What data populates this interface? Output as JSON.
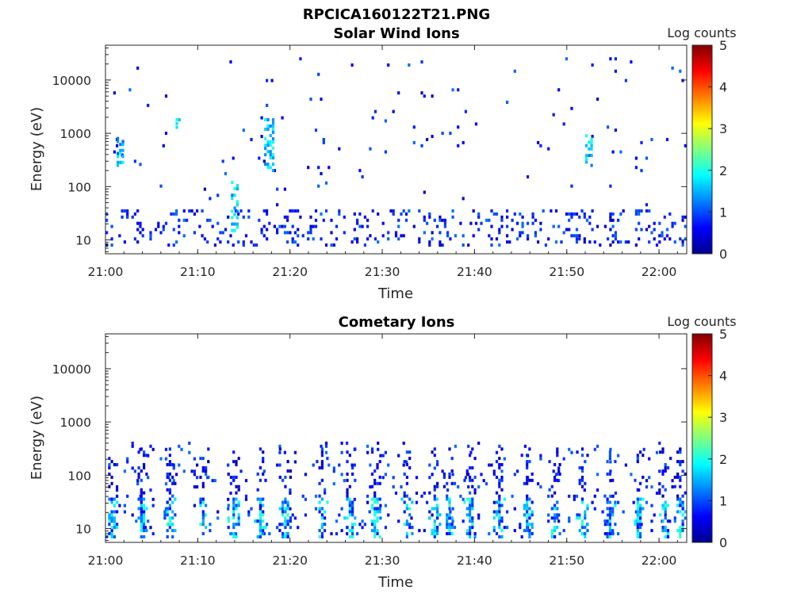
{
  "figure_title": "RPCICA160122T21.PNG",
  "chart_data": [
    {
      "type": "heatmap",
      "title": "Solar Wind Ions",
      "xlabel": "Time",
      "ylabel": "Energy (eV)",
      "y_scale": "log",
      "ylim": [
        5.5,
        45000
      ],
      "xlim": [
        "21:00",
        "22:03"
      ],
      "x_ticks": [
        "21:00",
        "21:10",
        "21:20",
        "21:30",
        "21:40",
        "21:50",
        "22:00"
      ],
      "y_ticks": [
        "10",
        "100",
        "1000",
        "10000"
      ],
      "colorbar": {
        "label": "Log counts",
        "range": [
          0,
          5
        ],
        "ticks": [
          "0",
          "1",
          "2",
          "3",
          "4",
          "5"
        ]
      },
      "bands": [
        {
          "t_start": 0,
          "t_end": 63,
          "e_min": 8,
          "e_max": 35,
          "level": 0.3,
          "density": 0.14
        },
        {
          "t_start": 0,
          "t_end": 63,
          "e_min": 40,
          "e_max": 25000,
          "level": 0.3,
          "density": 0.012
        },
        {
          "t_start": 1.2,
          "t_end": 2.0,
          "e_min": 250,
          "e_max": 800,
          "level": 1.1,
          "density": 0.6
        },
        {
          "t_start": 7.6,
          "t_end": 8.4,
          "e_min": 1300,
          "e_max": 1800,
          "level": 1.3,
          "density": 0.6
        },
        {
          "t_start": 17.2,
          "t_end": 18.2,
          "e_min": 200,
          "e_max": 1800,
          "level": 1.2,
          "density": 0.55
        },
        {
          "t_start": 13.6,
          "t_end": 14.4,
          "e_min": 15,
          "e_max": 120,
          "level": 1.2,
          "density": 0.45
        },
        {
          "t_start": 52.0,
          "t_end": 52.8,
          "e_min": 250,
          "e_max": 900,
          "level": 1.2,
          "density": 0.5
        }
      ]
    },
    {
      "type": "heatmap",
      "title": "Cometary Ions",
      "xlabel": "Time",
      "ylabel": "Energy (eV)",
      "y_scale": "log",
      "ylim": [
        5.5,
        45000
      ],
      "xlim": [
        "21:00",
        "22:03"
      ],
      "x_ticks": [
        "21:00",
        "21:10",
        "21:20",
        "21:30",
        "21:40",
        "21:50",
        "22:00"
      ],
      "y_ticks": [
        "10",
        "100",
        "1000",
        "10000"
      ],
      "colorbar": {
        "label": "Log counts",
        "range": [
          0,
          5
        ],
        "ticks": [
          "0",
          "1",
          "2",
          "3",
          "4",
          "5"
        ]
      },
      "bursts": [
        0.6,
        3.8,
        6.9,
        10.5,
        13.8,
        16.7,
        19.4,
        23.4,
        26.4,
        29.1,
        32.6,
        35.6,
        37.2,
        39.4,
        42.6,
        45.6,
        48.6,
        51.6,
        54.6,
        57.6,
        60.6,
        62.2
      ],
      "bands": [
        {
          "t_start": 0,
          "t_end": 63,
          "e_min": 8,
          "e_max": 400,
          "level": 0.3,
          "density": 0.05
        }
      ]
    }
  ]
}
